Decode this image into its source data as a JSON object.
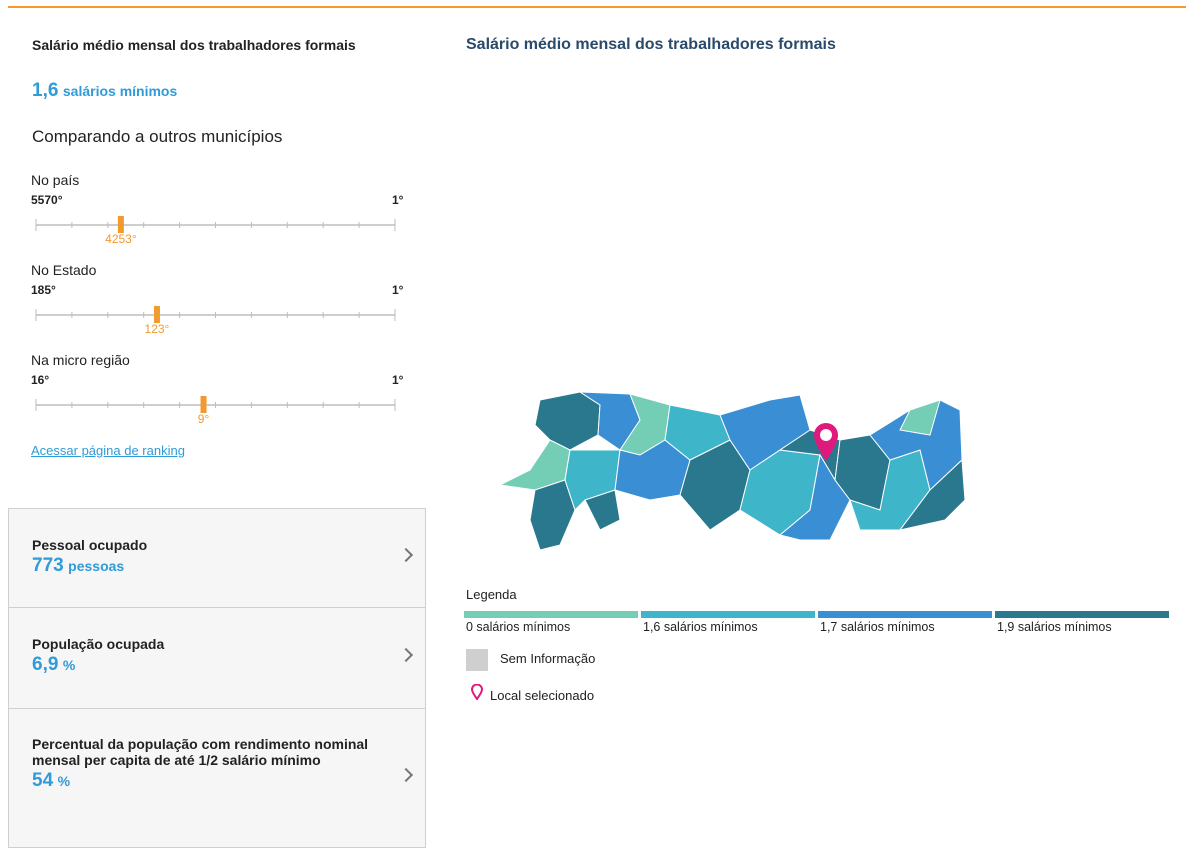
{
  "indicator": {
    "title": "Salário médio mensal dos trabalhadores formais",
    "value": "1,6",
    "unit": "salários mínimos"
  },
  "comparison": {
    "title": "Comparando a outros municípios",
    "rankings": [
      {
        "label": "No país",
        "min": "5570°",
        "max": "1°",
        "rank": "4253°"
      },
      {
        "label": "No Estado",
        "min": "185°",
        "max": "1°",
        "rank": "123°"
      },
      {
        "label": "Na micro região",
        "min": "16°",
        "max": "1°",
        "rank": "9°"
      }
    ],
    "link": "Acessar página de ranking"
  },
  "cards": [
    {
      "title": "Pessoal ocupado",
      "value": "773",
      "unit": "pessoas"
    },
    {
      "title": "População ocupada",
      "value": "6,9",
      "unit": "%"
    },
    {
      "title": "Percentual da população com rendimento nominal mensal per capita de até 1/2 salário mínimo",
      "value": "54",
      "unit": "%"
    }
  ],
  "map": {
    "title": "Salário médio mensal dos trabalhadores formais",
    "legend": {
      "title": "Legenda",
      "items": [
        {
          "label": "0 salários mínimos",
          "color": "#74cdb5"
        },
        {
          "label": "1,6 salários mínimos",
          "color": "#3eb5c8"
        },
        {
          "label": "1,7 salários mínimos",
          "color": "#3a8ed4"
        },
        {
          "label": "1,9 salários mínimos",
          "color": "#29788e"
        }
      ],
      "no_info": "Sem Informação",
      "selected": "Local selecionado"
    }
  }
}
